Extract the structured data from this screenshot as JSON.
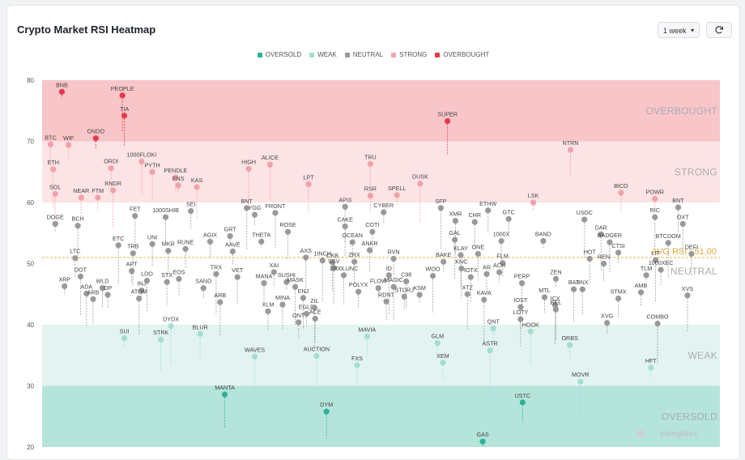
{
  "header": {
    "title": "Crypto Market RSI Heatmap",
    "range_label": "1 week",
    "refresh_icon": "refresh-icon",
    "caret_icon": "chevron-down-icon"
  },
  "legend": [
    {
      "label": "OVERSOLD",
      "color": "#2bb39a"
    },
    {
      "label": "WEAK",
      "color": "#a3ddd4"
    },
    {
      "label": "NEUTRAL",
      "color": "#999999"
    },
    {
      "label": "STRONG",
      "color": "#f2a1a8"
    },
    {
      "label": "OVERBOUGHT",
      "color": "#e8394a"
    }
  ],
  "chart_data": {
    "type": "scatter",
    "title": "Crypto Market RSI Heatmap",
    "ylim": [
      20,
      80
    ],
    "yticks": [
      20,
      30,
      40,
      50,
      60,
      70,
      80
    ],
    "zones": [
      {
        "label": "OVERBOUGHT",
        "from": 70,
        "to": 80,
        "color": "#f8c5c9"
      },
      {
        "label": "STRONG",
        "from": 60,
        "to": 70,
        "color": "#fce3e5"
      },
      {
        "label": "NEUTRAL",
        "from": 40,
        "to": 60,
        "color": "#ffffff"
      },
      {
        "label": "WEAK",
        "from": 30,
        "to": 40,
        "color": "#e2f3f0"
      },
      {
        "label": "OVERSOLD",
        "from": 20,
        "to": 30,
        "color": "#b5e4db"
      }
    ],
    "avg_rsi": 51.0,
    "avg_label": "AVG RSI : 51.00",
    "watermark": "coinglass",
    "points": [
      {
        "name": "BNB",
        "x": 0.02,
        "rsi": 78.1
      },
      {
        "name": "PEOPLE",
        "x": 0.111,
        "rsi": 77.5
      },
      {
        "name": "TIA",
        "x": 0.114,
        "rsi": 74.2
      },
      {
        "name": "BTC",
        "x": 0.003,
        "rsi": 69.5
      },
      {
        "name": "WIF",
        "x": 0.03,
        "rsi": 69.4
      },
      {
        "name": "ONDO",
        "x": 0.071,
        "rsi": 70.5
      },
      {
        "name": "ETH",
        "x": 0.007,
        "rsi": 65.4
      },
      {
        "name": "1000FLOKI",
        "x": 0.14,
        "rsi": 66.7
      },
      {
        "name": "PYTH",
        "x": 0.156,
        "rsi": 65.0
      },
      {
        "name": "ORDI",
        "x": 0.094,
        "rsi": 65.6
      },
      {
        "name": "PENDLE",
        "x": 0.191,
        "rsi": 64.1
      },
      {
        "name": "ENS",
        "x": 0.195,
        "rsi": 62.8
      },
      {
        "name": "RNDR",
        "x": 0.097,
        "rsi": 62.0
      },
      {
        "name": "KAS",
        "x": 0.223,
        "rsi": 62.5
      },
      {
        "name": "SOL",
        "x": 0.01,
        "rsi": 61.4
      },
      {
        "name": "NEAR",
        "x": 0.049,
        "rsi": 60.8
      },
      {
        "name": "FTM",
        "x": 0.074,
        "rsi": 60.8
      },
      {
        "name": "HIGH",
        "x": 0.301,
        "rsi": 65.5
      },
      {
        "name": "ALICE",
        "x": 0.333,
        "rsi": 66.2
      },
      {
        "name": "LPT",
        "x": 0.391,
        "rsi": 63.0
      },
      {
        "name": "TRU",
        "x": 0.484,
        "rsi": 66.3
      },
      {
        "name": "RSR",
        "x": 0.484,
        "rsi": 61.1
      },
      {
        "name": "SPELL",
        "x": 0.524,
        "rsi": 61.2
      },
      {
        "name": "DUSK",
        "x": 0.559,
        "rsi": 63.1
      },
      {
        "name": "SUPER",
        "x": 0.6,
        "rsi": 73.3
      },
      {
        "name": "NTRN",
        "x": 0.785,
        "rsi": 68.6
      },
      {
        "name": "BICO",
        "x": 0.861,
        "rsi": 61.6
      },
      {
        "name": "POWR",
        "x": 0.912,
        "rsi": 60.6
      },
      {
        "name": "DOGE",
        "x": 0.01,
        "rsi": 56.5
      },
      {
        "name": "BCH",
        "x": 0.044,
        "rsi": 56.2
      },
      {
        "name": "FET",
        "x": 0.13,
        "rsi": 57.8
      },
      {
        "name": "1000SHIB",
        "x": 0.176,
        "rsi": 57.6
      },
      {
        "name": "SEI",
        "x": 0.214,
        "rsi": 58.6
      },
      {
        "name": "YGG",
        "x": 0.31,
        "rsi": 58.0
      },
      {
        "name": "BNT",
        "x": 0.298,
        "rsi": 59.1
      },
      {
        "name": "FRONT",
        "x": 0.341,
        "rsi": 58.3
      },
      {
        "name": "ROSE",
        "x": 0.36,
        "rsi": 55.2
      },
      {
        "name": "UNI",
        "x": 0.156,
        "rsi": 53.2
      },
      {
        "name": "AGIX",
        "x": 0.243,
        "rsi": 53.6
      },
      {
        "name": "GRT",
        "x": 0.273,
        "rsi": 54.5
      },
      {
        "name": "ETC",
        "x": 0.105,
        "rsi": 53.0
      },
      {
        "name": "TRB",
        "x": 0.127,
        "rsi": 51.7
      },
      {
        "name": "MKR",
        "x": 0.18,
        "rsi": 52.1
      },
      {
        "name": "RUNE",
        "x": 0.206,
        "rsi": 52.4
      },
      {
        "name": "AAVE",
        "x": 0.277,
        "rsi": 52.0
      },
      {
        "name": "THETA",
        "x": 0.32,
        "rsi": 53.6
      },
      {
        "name": "API3",
        "x": 0.446,
        "rsi": 59.3
      },
      {
        "name": "CAKE",
        "x": 0.446,
        "rsi": 56.1
      },
      {
        "name": "COTI",
        "x": 0.487,
        "rsi": 55.2
      },
      {
        "name": "OCEAN",
        "x": 0.457,
        "rsi": 53.5
      },
      {
        "name": "CYBER",
        "x": 0.504,
        "rsi": 58.4
      },
      {
        "name": "SFP",
        "x": 0.59,
        "rsi": 59.1
      },
      {
        "name": "XMR",
        "x": 0.612,
        "rsi": 57.0
      },
      {
        "name": "CHR",
        "x": 0.641,
        "rsi": 56.8
      },
      {
        "name": "ETHW",
        "x": 0.661,
        "rsi": 58.7
      },
      {
        "name": "GTC",
        "x": 0.692,
        "rsi": 57.3
      },
      {
        "name": "LSK",
        "x": 0.729,
        "rsi": 60.0
      },
      {
        "name": "USDC",
        "x": 0.806,
        "rsi": 57.2
      },
      {
        "name": "RIC",
        "x": 0.912,
        "rsi": 57.6
      },
      {
        "name": "BNT",
        "x": 0.947,
        "rsi": 59.2
      },
      {
        "name": "LTC",
        "x": 0.04,
        "rsi": 50.9
      },
      {
        "name": "APT",
        "x": 0.125,
        "rsi": 48.8
      },
      {
        "name": "1INCH",
        "x": 0.412,
        "rsi": 50.5
      },
      {
        "name": "AXS",
        "x": 0.387,
        "rsi": 51.0
      },
      {
        "name": "CKB",
        "x": 0.427,
        "rsi": 50.2
      },
      {
        "name": "ANKR",
        "x": 0.483,
        "rsi": 52.2
      },
      {
        "name": "RVN",
        "x": 0.519,
        "rsi": 50.8
      },
      {
        "name": "BAKE",
        "x": 0.594,
        "rsi": 50.3
      },
      {
        "name": "GAL",
        "x": 0.611,
        "rsi": 53.9
      },
      {
        "name": "KLAY",
        "x": 0.62,
        "rsi": 51.4
      },
      {
        "name": "ONE",
        "x": 0.646,
        "rsi": 51.6
      },
      {
        "name": "1000X",
        "x": 0.681,
        "rsi": 53.7
      },
      {
        "name": "FLM",
        "x": 0.683,
        "rsi": 50.1
      },
      {
        "name": "BAND",
        "x": 0.744,
        "rsi": 53.7
      },
      {
        "name": "DAR",
        "x": 0.831,
        "rsi": 54.8
      },
      {
        "name": "BADGER",
        "x": 0.844,
        "rsi": 53.5
      },
      {
        "name": "HOT",
        "x": 0.814,
        "rsi": 50.8
      },
      {
        "name": "REN",
        "x": 0.835,
        "rsi": 50.0
      },
      {
        "name": "CTSI",
        "x": 0.857,
        "rsi": 51.8
      },
      {
        "name": "LIT",
        "x": 0.913,
        "rsi": 50.6
      },
      {
        "name": "BTCDOM",
        "x": 0.932,
        "rsi": 53.4
      },
      {
        "name": "OXT",
        "x": 0.954,
        "rsi": 56.5
      },
      {
        "name": "DEFI",
        "x": 0.967,
        "rsi": 51.6
      },
      {
        "name": "1000XEC",
        "x": 0.921,
        "rsi": 49.0
      },
      {
        "name": "XRP",
        "x": 0.024,
        "rsi": 46.3
      },
      {
        "name": "DOT",
        "x": 0.048,
        "rsi": 47.9
      },
      {
        "name": "ADA",
        "x": 0.057,
        "rsi": 45.1
      },
      {
        "name": "ARB",
        "x": 0.067,
        "rsi": 44.2
      },
      {
        "name": "WLD",
        "x": 0.081,
        "rsi": 46.0
      },
      {
        "name": "OP",
        "x": 0.089,
        "rsi": 44.9
      },
      {
        "name": "INJ",
        "x": 0.14,
        "rsi": 45.6
      },
      {
        "name": "ATOM",
        "x": 0.136,
        "rsi": 44.3
      },
      {
        "name": "LDO",
        "x": 0.148,
        "rsi": 47.2
      },
      {
        "name": "STX",
        "x": 0.178,
        "rsi": 47.0
      },
      {
        "name": "EOS",
        "x": 0.196,
        "rsi": 47.5
      },
      {
        "name": "SAND",
        "x": 0.233,
        "rsi": 46.0
      },
      {
        "name": "TRX",
        "x": 0.252,
        "rsi": 48.3
      },
      {
        "name": "ARB",
        "x": 0.258,
        "rsi": 43.7
      },
      {
        "name": "VET",
        "x": 0.284,
        "rsi": 47.8
      },
      {
        "name": "MANA",
        "x": 0.324,
        "rsi": 46.8
      },
      {
        "name": "XAI",
        "x": 0.339,
        "rsi": 48.6
      },
      {
        "name": "SUSHI",
        "x": 0.358,
        "rsi": 47.0
      },
      {
        "name": "MASK",
        "x": 0.371,
        "rsi": 46.2
      },
      {
        "name": "ENJ",
        "x": 0.383,
        "rsi": 44.4
      },
      {
        "name": "MINA",
        "x": 0.352,
        "rsi": 43.3
      },
      {
        "name": "XLM",
        "x": 0.33,
        "rsi": 42.2
      },
      {
        "name": "EGLD",
        "x": 0.388,
        "rsi": 41.8
      },
      {
        "name": "ZIL",
        "x": 0.4,
        "rsi": 42.8
      },
      {
        "name": "SSV",
        "x": 0.429,
        "rsi": 49.3
      },
      {
        "name": "1000LUNC",
        "x": 0.444,
        "rsi": 48.1
      },
      {
        "name": "ZRX",
        "x": 0.46,
        "rsi": 50.3
      },
      {
        "name": "POLYX",
        "x": 0.466,
        "rsi": 45.4
      },
      {
        "name": "FLOW",
        "x": 0.496,
        "rsi": 46.0
      },
      {
        "name": "ID",
        "x": 0.512,
        "rsi": 48.1
      },
      {
        "name": "MAGIC",
        "x": 0.519,
        "rsi": 46.2
      },
      {
        "name": "C98",
        "x": 0.538,
        "rsi": 47.1
      },
      {
        "name": "RDNT",
        "x": 0.508,
        "rsi": 43.8
      },
      {
        "name": "STORJ",
        "x": 0.535,
        "rsi": 44.6
      },
      {
        "name": "KSM",
        "x": 0.558,
        "rsi": 44.9
      },
      {
        "name": "WOO",
        "x": 0.578,
        "rsi": 48.0
      },
      {
        "name": "KNC",
        "x": 0.621,
        "rsi": 49.2
      },
      {
        "name": "IOTX",
        "x": 0.635,
        "rsi": 47.8
      },
      {
        "name": "AR",
        "x": 0.659,
        "rsi": 48.3
      },
      {
        "name": "ACH",
        "x": 0.678,
        "rsi": 48.6
      },
      {
        "name": "KAVA",
        "x": 0.655,
        "rsi": 44.1
      },
      {
        "name": "XTZ",
        "x": 0.63,
        "rsi": 45.0
      },
      {
        "name": "PERP",
        "x": 0.712,
        "rsi": 46.8
      },
      {
        "name": "IOST",
        "x": 0.71,
        "rsi": 42.9
      },
      {
        "name": "MTL",
        "x": 0.746,
        "rsi": 44.5
      },
      {
        "name": "ZEN",
        "x": 0.763,
        "rsi": 47.5
      },
      {
        "name": "ICX",
        "x": 0.762,
        "rsi": 43.2
      },
      {
        "name": "BAT",
        "x": 0.79,
        "rsi": 45.8
      },
      {
        "name": "BNX",
        "x": 0.803,
        "rsi": 45.8
      },
      {
        "name": "STMX",
        "x": 0.857,
        "rsi": 44.3
      },
      {
        "name": "AMB",
        "x": 0.891,
        "rsi": 45.3
      },
      {
        "name": "TLM",
        "x": 0.899,
        "rsi": 48.1
      },
      {
        "name": "XVS",
        "x": 0.961,
        "rsi": 44.8
      },
      {
        "name": "BEL",
        "x": 0.763,
        "rsi": 42.5
      },
      {
        "name": "ACE",
        "x": 0.401,
        "rsi": 41.0
      },
      {
        "name": "ONT",
        "x": 0.376,
        "rsi": 40.4
      },
      {
        "name": "XVG",
        "x": 0.84,
        "rsi": 40.3
      },
      {
        "name": "COMBO",
        "x": 0.916,
        "rsi": 40.2
      },
      {
        "name": "HOOK",
        "x": 0.725,
        "rsi": 38.9
      },
      {
        "name": "LOTY",
        "x": 0.71,
        "rsi": 40.9
      },
      {
        "name": "QNT",
        "x": 0.669,
        "rsi": 39.4
      },
      {
        "name": "ORBS",
        "x": 0.784,
        "rsi": 36.7
      },
      {
        "name": "SUI",
        "x": 0.114,
        "rsi": 37.8
      },
      {
        "name": "DYDX",
        "x": 0.184,
        "rsi": 39.8
      },
      {
        "name": "STRK",
        "x": 0.169,
        "rsi": 37.6
      },
      {
        "name": "BLUR",
        "x": 0.228,
        "rsi": 38.5
      },
      {
        "name": "MAVIA",
        "x": 0.479,
        "rsi": 38.1
      },
      {
        "name": "GLM",
        "x": 0.585,
        "rsi": 37.0
      },
      {
        "name": "ASTR",
        "x": 0.664,
        "rsi": 35.8
      },
      {
        "name": "WAVES",
        "x": 0.31,
        "rsi": 34.8
      },
      {
        "name": "AUCTION",
        "x": 0.403,
        "rsi": 34.9
      },
      {
        "name": "FXS",
        "x": 0.464,
        "rsi": 33.4
      },
      {
        "name": "XEM",
        "x": 0.593,
        "rsi": 33.8
      },
      {
        "name": "HFT",
        "x": 0.906,
        "rsi": 33.0
      },
      {
        "name": "MOVR",
        "x": 0.8,
        "rsi": 30.7
      },
      {
        "name": "MANTA",
        "x": 0.265,
        "rsi": 28.6
      },
      {
        "name": "DYM",
        "x": 0.418,
        "rsi": 25.8
      },
      {
        "name": "USTC",
        "x": 0.713,
        "rsi": 27.3
      },
      {
        "name": "GAS",
        "x": 0.653,
        "rsi": 20.9
      }
    ]
  }
}
